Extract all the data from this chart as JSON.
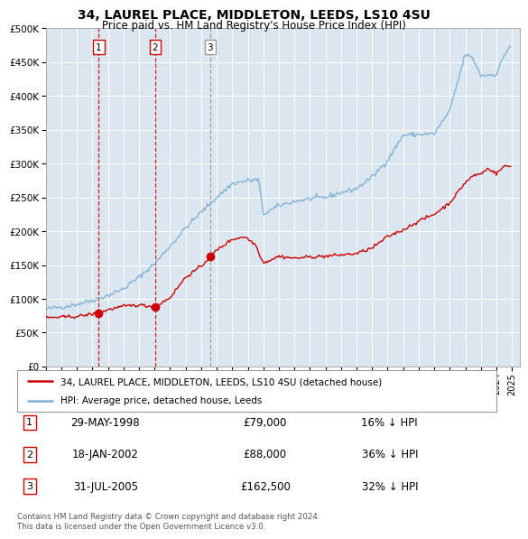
{
  "title": "34, LAUREL PLACE, MIDDLETON, LEEDS, LS10 4SU",
  "subtitle": "Price paid vs. HM Land Registry's House Price Index (HPI)",
  "bg_color": "#dce6f1",
  "hpi_color": "#7bafd4",
  "price_color": "#cc0000",
  "purchase_dates": [
    1998.41,
    2002.04,
    2005.58
  ],
  "purchase_prices": [
    79000,
    88000,
    162500
  ],
  "purchase_labels": [
    "1",
    "2",
    "3"
  ],
  "vline_colors": [
    "#cc0000",
    "#cc0000",
    "#999999"
  ],
  "vline_styles": [
    "--",
    "--",
    "--"
  ],
  "legend_line1": "34, LAUREL PLACE, MIDDLETON, LEEDS, LS10 4SU (detached house)",
  "legend_line2": "HPI: Average price, detached house, Leeds",
  "table": [
    [
      "1",
      "29-MAY-1998",
      "£79,000",
      "16% ↓ HPI"
    ],
    [
      "2",
      "18-JAN-2002",
      "£88,000",
      "36% ↓ HPI"
    ],
    [
      "3",
      "31-JUL-2005",
      "£162,500",
      "32% ↓ HPI"
    ]
  ],
  "footnote": "Contains HM Land Registry data © Crown copyright and database right 2024.\nThis data is licensed under the Open Government Licence v3.0.",
  "ylim": [
    0,
    500000
  ],
  "xlim_start": 1995.0,
  "xlim_end": 2025.5,
  "hpi_key_years": [
    1995,
    1996,
    1997,
    1998,
    1999,
    2000,
    2001,
    2002,
    2003,
    2004,
    2005,
    2006,
    2007,
    2008,
    2008.7,
    2009,
    2010,
    2011,
    2012,
    2013,
    2014,
    2015,
    2016,
    2017,
    2018,
    2019,
    2020,
    2021,
    2021.5,
    2022,
    2022.5,
    2023,
    2024,
    2024.5,
    2025
  ],
  "hpi_key_values": [
    85000,
    88000,
    92000,
    98000,
    105000,
    115000,
    132000,
    152000,
    178000,
    205000,
    228000,
    250000,
    270000,
    275000,
    276000,
    225000,
    238000,
    244000,
    248000,
    250000,
    257000,
    263000,
    280000,
    305000,
    342000,
    343000,
    344000,
    378000,
    420000,
    462000,
    455000,
    430000,
    432000,
    460000,
    478000
  ],
  "price_key_years": [
    1995,
    1997,
    1998.41,
    1999,
    2000,
    2001,
    2002.04,
    2003,
    2004,
    2005.0,
    2005.58,
    2006,
    2007,
    2007.8,
    2008.5,
    2009,
    2010,
    2011,
    2012,
    2013,
    2014,
    2015,
    2016,
    2017,
    2018,
    2019,
    2020,
    2021,
    2022,
    2022.5,
    2023,
    2023.5,
    2024,
    2024.5
  ],
  "price_key_values": [
    72000,
    74000,
    79000,
    84000,
    89000,
    91000,
    88000,
    102000,
    132000,
    148000,
    162500,
    172000,
    188000,
    192000,
    180000,
    153000,
    163000,
    160000,
    162000,
    163000,
    165000,
    167000,
    175000,
    192000,
    202000,
    215000,
    225000,
    242000,
    272000,
    282000,
    285000,
    293000,
    285000,
    296000
  ]
}
